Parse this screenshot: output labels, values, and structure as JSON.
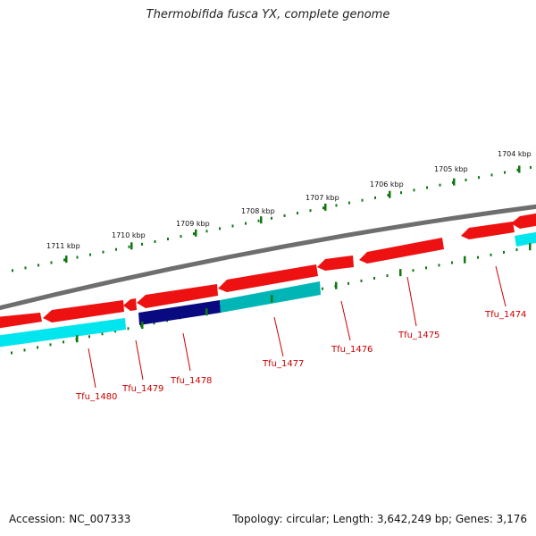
{
  "title": "Thermobifida fusca YX, complete genome",
  "footer": {
    "accession": "Accession: NC_007333",
    "summary": "Topology: circular; Length: 3,642,249 bp; Genes: 3,176"
  },
  "colors": {
    "backbone": "#777777",
    "forward_gene": "#ee1111",
    "reverse_gene": "#00e5ee",
    "reverse_gene_dark": "#00aaaa",
    "selected_gene": "#0a0a80",
    "tick": "#117711",
    "label": "#cc0000"
  },
  "scale": {
    "unit": "kbp",
    "major_ticks": [
      {
        "label": "1704 kbp"
      },
      {
        "label": "1705 kbp"
      },
      {
        "label": "1706 kbp"
      },
      {
        "label": "1707 kbp"
      },
      {
        "label": "1708 kbp"
      },
      {
        "label": "1709 kbp"
      },
      {
        "label": "1710 kbp"
      },
      {
        "label": "1711 kbp"
      }
    ]
  },
  "gene_labels": [
    {
      "name": "Tfu_1474"
    },
    {
      "name": "Tfu_1475"
    },
    {
      "name": "Tfu_1476"
    },
    {
      "name": "Tfu_1477"
    },
    {
      "name": "Tfu_1478"
    },
    {
      "name": "Tfu_1479"
    },
    {
      "name": "Tfu_1480"
    }
  ]
}
